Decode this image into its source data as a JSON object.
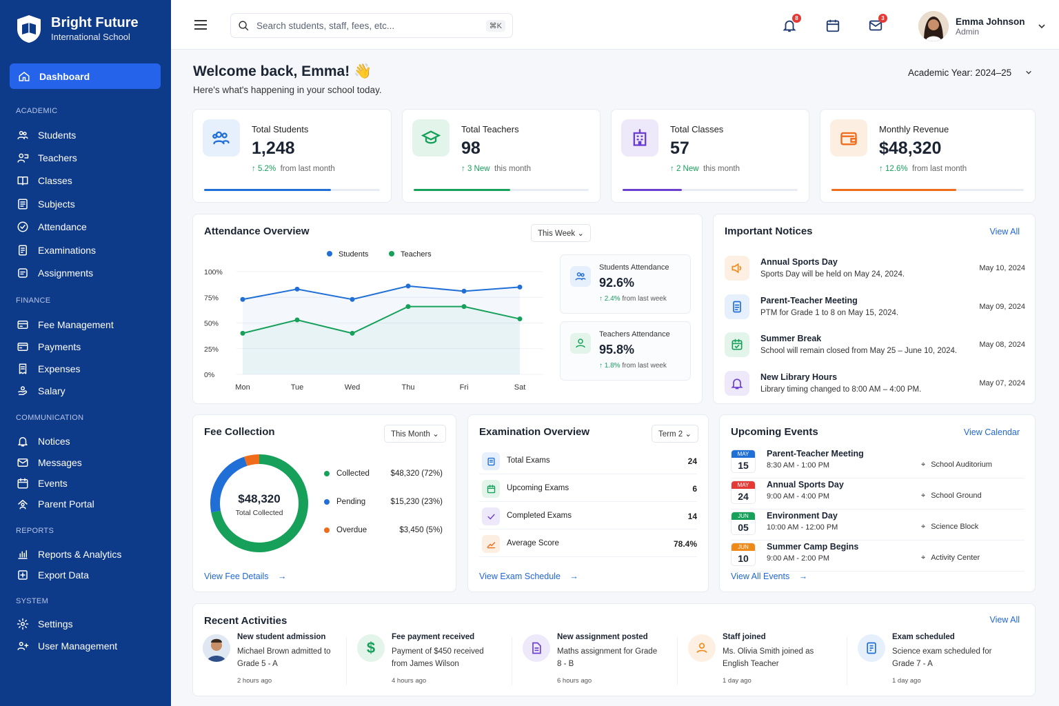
{
  "brand": {
    "title": "Bright Future",
    "subtitle": "International School"
  },
  "sidebar": {
    "active": {
      "label": "Dashboard",
      "icon": "home-icon"
    },
    "sections": [
      {
        "title": "ACADEMIC",
        "items": [
          {
            "label": "Students",
            "icon": "users-icon"
          },
          {
            "label": "Teachers",
            "icon": "teacher-icon"
          },
          {
            "label": "Classes",
            "icon": "book-icon"
          },
          {
            "label": "Subjects",
            "icon": "list-icon"
          },
          {
            "label": "Attendance",
            "icon": "check-circle-icon"
          },
          {
            "label": "Examinations",
            "icon": "exam-icon"
          },
          {
            "label": "Assignments",
            "icon": "assignment-icon"
          }
        ]
      },
      {
        "title": "FINANCE",
        "items": [
          {
            "label": "Fee Management",
            "icon": "fee-icon"
          },
          {
            "label": "Payments",
            "icon": "card-icon"
          },
          {
            "label": "Expenses",
            "icon": "receipt-icon"
          },
          {
            "label": "Salary",
            "icon": "salary-icon"
          }
        ]
      },
      {
        "title": "COMMUNICATION",
        "items": [
          {
            "label": "Notices",
            "icon": "bell-icon"
          },
          {
            "label": "Messages",
            "icon": "mail-icon"
          },
          {
            "label": "Events",
            "icon": "calendar-icon"
          },
          {
            "label": "Parent Portal",
            "icon": "parent-icon"
          }
        ]
      },
      {
        "title": "REPORTS",
        "items": [
          {
            "label": "Reports & Analytics",
            "icon": "bar-chart-icon"
          },
          {
            "label": "Export Data",
            "icon": "export-icon"
          }
        ]
      },
      {
        "title": "SYSTEM",
        "items": [
          {
            "label": "Settings",
            "icon": "gear-icon"
          },
          {
            "label": "User Management",
            "icon": "user-manage-icon"
          }
        ]
      }
    ]
  },
  "topbar": {
    "search_placeholder": "Search students, staff, fees, etc...",
    "shortcut": "⌘K",
    "notifications_count": "8",
    "messages_count": "3",
    "user_name": "Emma Johnson",
    "user_role": "Admin"
  },
  "welcome": {
    "title": "Welcome back, Emma! 👋",
    "subtitle": "Here's what's happening in your school today.",
    "academic_year": "Academic Year:  2024–25"
  },
  "stats": [
    {
      "label": "Total Students",
      "value": "1,248",
      "change": "5.2%",
      "change_text": "from last month",
      "progress": 0.72,
      "color": "#1f6fd6",
      "bg": "#e6effc"
    },
    {
      "label": "Total Teachers",
      "value": "98",
      "change": "3 New",
      "change_text": "this month",
      "progress": 0.55,
      "color": "#16a05a",
      "bg": "#e3f5ea"
    },
    {
      "label": "Total Classes",
      "value": "57",
      "change": "2 New",
      "change_text": "this month",
      "progress": 0.34,
      "color": "#6a3fd0",
      "bg": "#eee8fb"
    },
    {
      "label": "Monthly Revenue",
      "value": "$48,320",
      "change": "12.6%",
      "change_text": "from last month",
      "progress": 0.65,
      "color": "#ef6c1a",
      "bg": "#fdeee2"
    }
  ],
  "attendance": {
    "title": "Attendance Overview",
    "range": "This Week",
    "students_card": {
      "label": "Students Attendance",
      "value": "92.6%",
      "change": "2.4%",
      "change_text": "from last week"
    },
    "teachers_card": {
      "label": "Teachers Attendance",
      "value": "95.8%",
      "change": "1.8%",
      "change_text": "from last week"
    }
  },
  "chart_data": {
    "type": "line",
    "title": "Attendance Overview",
    "x": [
      "Mon",
      "Tue",
      "Wed",
      "Thu",
      "Fri",
      "Sat"
    ],
    "series": [
      {
        "name": "Students",
        "values": [
          73,
          83,
          73,
          86,
          81,
          85
        ],
        "color": "#1f6fd6"
      },
      {
        "name": "Teachers",
        "values": [
          40,
          53,
          40,
          66,
          66,
          54
        ],
        "color": "#16a05a"
      }
    ],
    "ylim": [
      0,
      100
    ],
    "yticks": [
      "100%",
      "75%",
      "50%",
      "25%",
      "0%"
    ],
    "legend": "top-center",
    "grid": true
  },
  "notices": {
    "title": "Important Notices",
    "view_all": "View All",
    "items": [
      {
        "title": "Annual Sports Day",
        "desc": "Sports Day will be held on May 24, 2024.",
        "date": "May 10, 2024",
        "color": "#ef8a1a",
        "bg": "#fdf0e2"
      },
      {
        "title": "Parent-Teacher Meeting",
        "desc": "PTM for Grade 1 to 8 on May 15, 2024.",
        "date": "May 09, 2024",
        "color": "#1f6fd6",
        "bg": "#e6effc"
      },
      {
        "title": "Summer Break",
        "desc": "School will remain closed from May 25 – June 10, 2024.",
        "date": "May 08, 2024",
        "color": "#16a05a",
        "bg": "#e3f5ea"
      },
      {
        "title": "New Library Hours",
        "desc": "Library timing changed to 8:00 AM – 4:00 PM.",
        "date": "May 07, 2024",
        "color": "#6a3fd0",
        "bg": "#eee8fb"
      }
    ]
  },
  "fee": {
    "title": "Fee Collection",
    "range": "This Month",
    "total": "$48,320",
    "total_label": "Total Collected",
    "view_link": "View Fee Details",
    "rows": [
      {
        "label": "Collected",
        "amount": "$48,320 (72%)",
        "color": "#16a05a",
        "pct": 72
      },
      {
        "label": "Pending",
        "amount": "$15,230 (23%)",
        "color": "#1f6fd6",
        "pct": 23
      },
      {
        "label": "Overdue",
        "amount": "$3,450 (5%)",
        "color": "#ef6c1a",
        "pct": 5
      }
    ]
  },
  "exam": {
    "title": "Examination Overview",
    "term": "Term 2",
    "view_link": "View Exam Schedule",
    "rows": [
      {
        "label": "Total Exams",
        "value": "24",
        "color": "#1f6fd6",
        "bg": "#e6effc"
      },
      {
        "label": "Upcoming Exams",
        "value": "6",
        "color": "#16a05a",
        "bg": "#e3f5ea"
      },
      {
        "label": "Completed Exams",
        "value": "14",
        "color": "#6a3fd0",
        "bg": "#eee8fb"
      },
      {
        "label": "Average Score",
        "value": "78.4%",
        "color": "#ef6c1a",
        "bg": "#fdeee2"
      }
    ]
  },
  "events": {
    "title": "Upcoming Events",
    "view_calendar": "View Calendar",
    "view_all": "View All Events",
    "items": [
      {
        "month": "MAY",
        "day": "15",
        "title": "Parent-Teacher Meeting",
        "time": "8:30 AM  -  1:00 PM",
        "location": "School Auditorium",
        "color": "#1f6fd6"
      },
      {
        "month": "MAY",
        "day": "24",
        "title": "Annual Sports Day",
        "time": "9:00 AM  -  4:00 PM",
        "location": "School Ground",
        "color": "#e53935"
      },
      {
        "month": "JUN",
        "day": "05",
        "title": "Environment Day",
        "time": "10:00 AM  -  12:00 PM",
        "location": "Science Block",
        "color": "#16a05a"
      },
      {
        "month": "JUN",
        "day": "10",
        "title": "Summer Camp Begins",
        "time": "9:00 AM  -  2:00 PM",
        "location": "Activity Center",
        "color": "#ef8a1a"
      }
    ]
  },
  "activities": {
    "title": "Recent Activities",
    "view_all": "View All",
    "items": [
      {
        "title": "New student admission",
        "desc": "Michael Brown admitted to Grade 5 - A",
        "time": "2 hours ago",
        "icon": "student-avatar",
        "color": "#8a6a4a",
        "bg": "#f0e4d6"
      },
      {
        "title": "Fee payment received",
        "desc": "Payment of $450 received from James Wilson",
        "time": "4 hours ago",
        "icon": "dollar-icon",
        "color": "#16a05a",
        "bg": "#e3f5ea"
      },
      {
        "title": "New assignment posted",
        "desc": "Maths assignment for Grade 8 - B",
        "time": "6 hours ago",
        "icon": "document-icon",
        "color": "#6a3fd0",
        "bg": "#eee8fb"
      },
      {
        "title": "Staff joined",
        "desc": "Ms. Olivia Smith joined as English Teacher",
        "time": "1 day ago",
        "icon": "person-icon",
        "color": "#ef8a1a",
        "bg": "#fdf0e2"
      },
      {
        "title": "Exam scheduled",
        "desc": "Science exam scheduled for Grade 7 - A",
        "time": "1 day ago",
        "icon": "exam-doc-icon",
        "color": "#1f6fd6",
        "bg": "#e6effc"
      }
    ]
  }
}
